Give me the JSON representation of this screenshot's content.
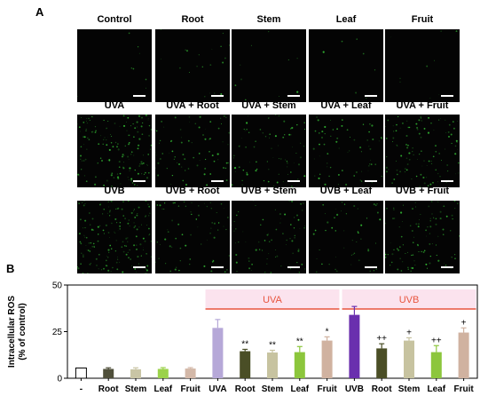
{
  "panel_a_label": "A",
  "panel_b_label": "B",
  "micrographs": {
    "rows": [
      [
        "Control",
        "Root",
        "Stem",
        "Leaf",
        "Fruit"
      ],
      [
        "UVA",
        "UVA + Root",
        "UVA + Stem",
        "UVA + Leaf",
        "UVA + Fruit"
      ],
      [
        "UVB",
        "UVB + Root",
        "UVB + Stem",
        "UVB + Leaf",
        "UVB + Fruit"
      ]
    ],
    "fluorescence_intensity": [
      [
        0.05,
        0.12,
        0.06,
        0.04,
        0.06
      ],
      [
        0.9,
        0.45,
        0.45,
        0.4,
        0.65
      ],
      [
        1.0,
        0.4,
        0.45,
        0.3,
        0.6
      ]
    ],
    "fluorescence_color": "#3bd63b"
  },
  "chart_data": {
    "type": "bar",
    "title": "",
    "ylabel": "Intracellular ROS (% of control)",
    "xlabel": "",
    "ylim": [
      0,
      50
    ],
    "yticks": [
      0,
      25,
      50
    ],
    "categories": [
      "-",
      "Root",
      "Stem",
      "Leaf",
      "Fruit",
      "UVA",
      "Root",
      "Stem",
      "Leaf",
      "Fruit",
      "UVB",
      "Root",
      "Stem",
      "Leaf",
      "Fruit"
    ],
    "values": [
      5.5,
      5.0,
      4.8,
      5.0,
      5.2,
      27.0,
      14.5,
      13.8,
      14.0,
      20.2,
      34.0,
      16.0,
      20.2,
      14.0,
      24.5
    ],
    "errors": [
      0,
      0.6,
      0.8,
      0.7,
      0.5,
      4.5,
      1.0,
      1.2,
      3.0,
      2.0,
      4.5,
      2.5,
      1.5,
      3.5,
      2.5
    ],
    "annotations": [
      "",
      "",
      "",
      "",
      "",
      "",
      "**",
      "**",
      "**",
      "*",
      "",
      "++",
      "+",
      "++",
      "+"
    ],
    "bar_colors": [
      "#ffffff",
      "#4f4f3a",
      "#c9c5a5",
      "#9bd24a",
      "#d3b8a8",
      "#b6a8d8",
      "#4a4e26",
      "#c7c3a0",
      "#8cc63c",
      "#d0b2a0",
      "#6a2fae",
      "#4a4e26",
      "#c7c3a0",
      "#8cc63c",
      "#d0b2a0"
    ],
    "group_labels": [
      "UVA",
      "UVB"
    ],
    "group_color": "#e8553f",
    "group_bg_color": "#fbe3ee"
  }
}
